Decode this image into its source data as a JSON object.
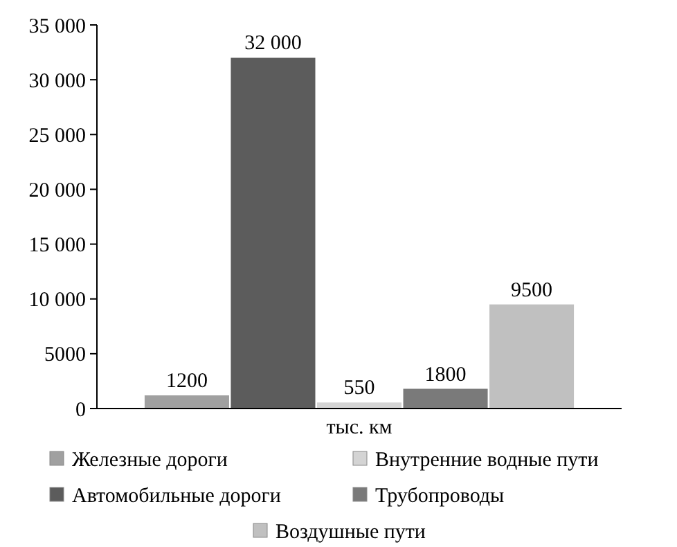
{
  "chart_data": {
    "type": "bar",
    "categories": [
      "тыс. км"
    ],
    "series": [
      {
        "name": "Железные дороги",
        "color": "#a0a0a0",
        "values": [
          1200
        ],
        "value_labels": [
          "1200"
        ]
      },
      {
        "name": "Автомобильные дороги",
        "color": "#5c5c5c",
        "values": [
          32000
        ],
        "value_labels": [
          "32 000"
        ]
      },
      {
        "name": "Внутренние водные пути",
        "color": "#d4d4d4",
        "values": [
          550
        ],
        "value_labels": [
          "550"
        ]
      },
      {
        "name": "Трубопроводы",
        "color": "#7a7a7a",
        "values": [
          1800
        ],
        "value_labels": [
          "1800"
        ]
      },
      {
        "name": "Воздушные пути",
        "color": "#c0c0c0",
        "values": [
          9500
        ],
        "value_labels": [
          "9500"
        ]
      }
    ],
    "ylim": [
      0,
      35000
    ],
    "yticks": [
      0,
      {
        "value": 5000,
        "label": "5000"
      },
      {
        "value": 10000,
        "label": "10 000"
      },
      {
        "value": 15000,
        "label": "15 000"
      },
      {
        "value": 20000,
        "label": "20 000"
      },
      {
        "value": 25000,
        "label": "25 000"
      },
      {
        "value": 30000,
        "label": "30 000"
      },
      {
        "value": 35000,
        "label": "35 000"
      }
    ],
    "grid": false,
    "legend": "bottom"
  }
}
